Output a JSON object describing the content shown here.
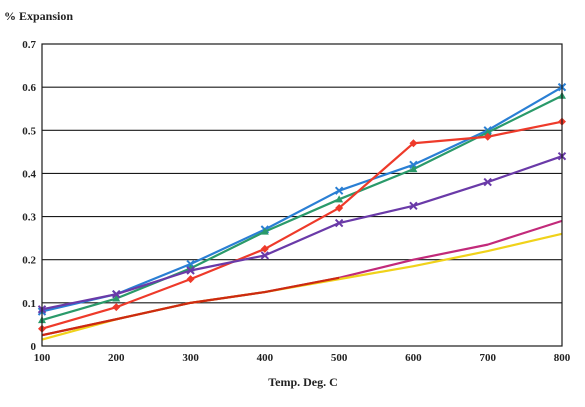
{
  "chart_data": {
    "type": "line",
    "title": "",
    "xlabel": "Temp. Deg. C",
    "ylabel": "% Expansion",
    "x": [
      100,
      200,
      300,
      400,
      500,
      600,
      700,
      800
    ],
    "xlim": [
      100,
      800
    ],
    "ylim": [
      0,
      0.7
    ],
    "y_ticks": [
      0,
      0.1,
      0.2,
      0.3,
      0.4,
      0.5,
      0.6,
      0.7
    ],
    "grid": "horizontal",
    "legend": "none",
    "series": [
      {
        "color": "#2a7fd4",
        "marker": "x",
        "values": [
          0.08,
          0.12,
          0.19,
          0.27,
          0.36,
          0.42,
          0.5,
          0.6
        ]
      },
      {
        "color": "#2a9a6a",
        "marker": "triangle",
        "values": [
          0.06,
          0.11,
          0.18,
          0.265,
          0.34,
          0.41,
          0.495,
          0.58
        ]
      },
      {
        "color": "#ee3a2a",
        "marker": "diamond",
        "values": [
          0.04,
          0.09,
          0.155,
          0.225,
          0.32,
          0.47,
          0.485,
          0.52
        ]
      },
      {
        "color": "#6a3aa8",
        "marker": "x",
        "values": [
          0.085,
          0.12,
          0.175,
          0.21,
          0.285,
          0.325,
          0.38,
          0.44
        ]
      },
      {
        "color": "#c22a7a",
        "marker": "none",
        "values": [
          0.025,
          0.062,
          0.1,
          0.125,
          0.158,
          0.2,
          0.235,
          0.29
        ]
      },
      {
        "color": "#f0d21a",
        "marker": "none",
        "values": [
          0.015,
          0.062,
          0.1,
          0.125,
          0.155,
          0.185,
          0.22,
          0.26
        ]
      },
      {
        "color": "#cc2a10",
        "marker": "none",
        "values": [
          0.025,
          0.062,
          0.1,
          0.125,
          0.158,
          null,
          null,
          null
        ]
      }
    ]
  }
}
